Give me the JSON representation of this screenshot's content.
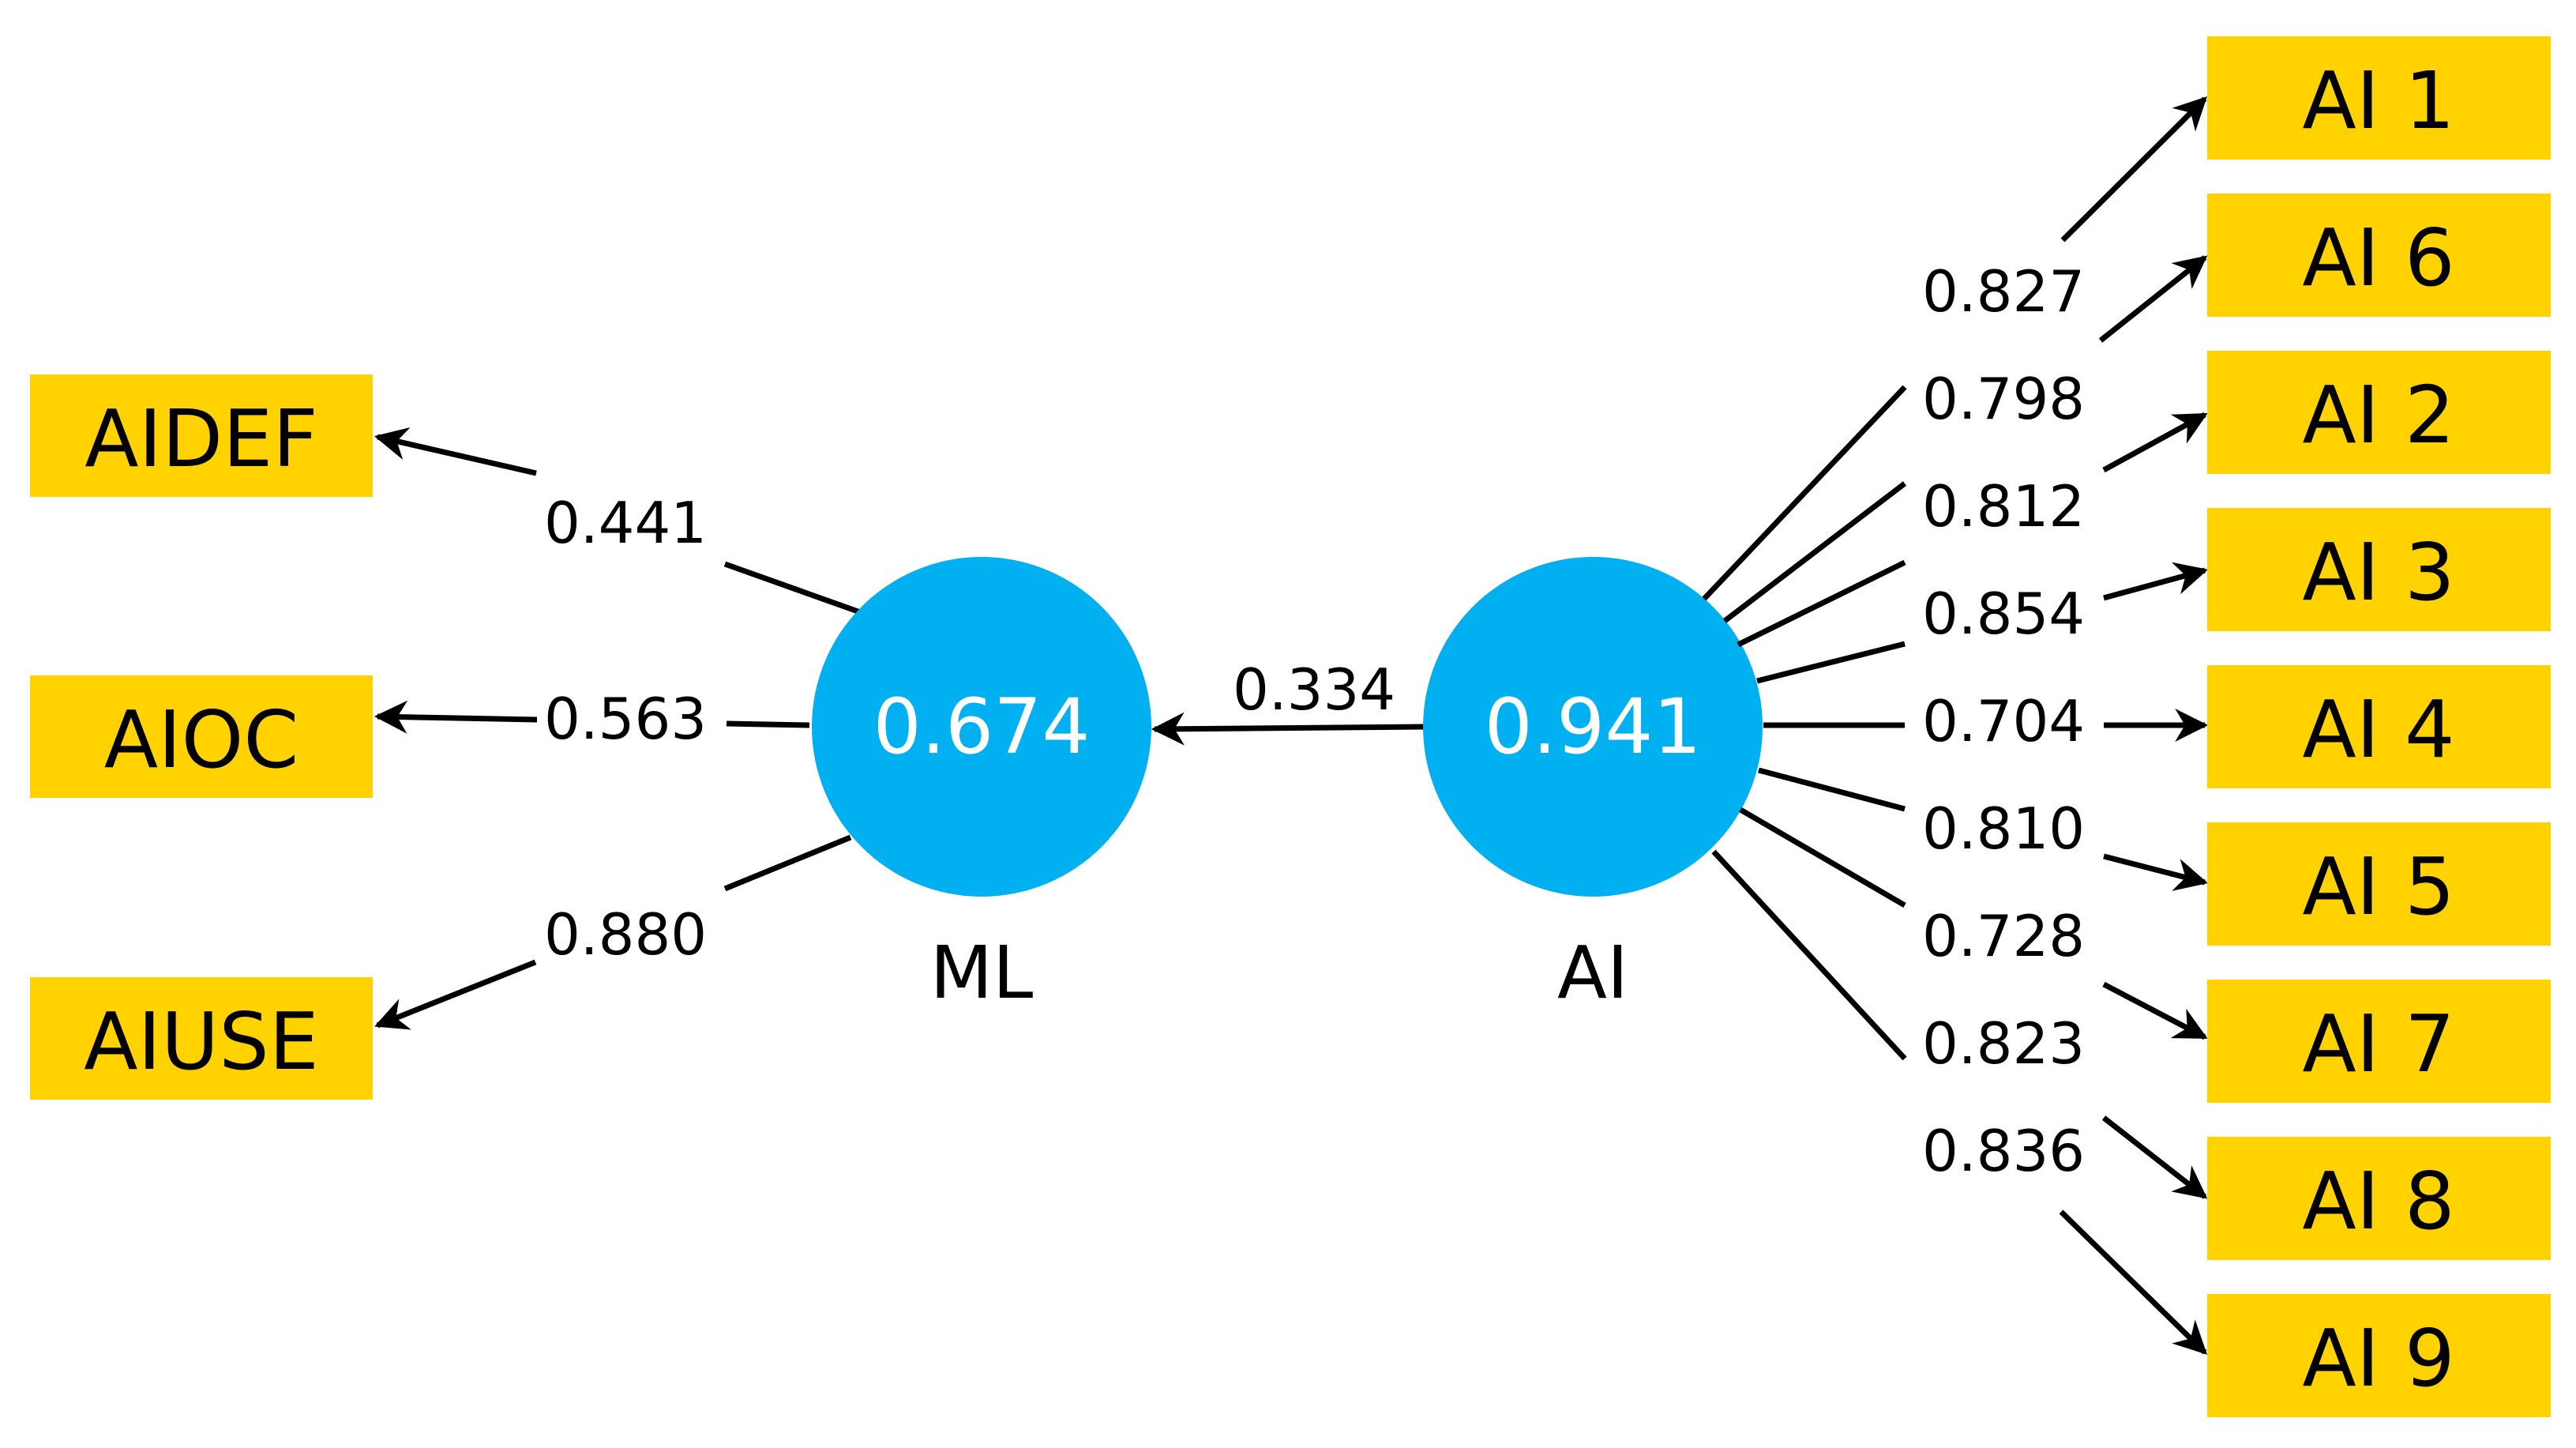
{
  "diagram": {
    "nodes": {
      "ml": {
        "value": "0.674",
        "name": "ML"
      },
      "ai": {
        "value": "0.941",
        "name": "AI"
      }
    },
    "structural_path": {
      "from": "AI",
      "to": "ML",
      "weight": "0.334"
    },
    "ml_indicators": [
      {
        "label": "AIDEF",
        "weight": "0.441"
      },
      {
        "label": "AIOC",
        "weight": "0.563"
      },
      {
        "label": "AIUSE",
        "weight": "0.880"
      }
    ],
    "ai_indicators": [
      {
        "label": "AI 1",
        "weight": "0.827"
      },
      {
        "label": "AI 6",
        "weight": "0.798"
      },
      {
        "label": "AI 2",
        "weight": "0.812"
      },
      {
        "label": "AI 3",
        "weight": "0.854"
      },
      {
        "label": "AI 4",
        "weight": "0.704"
      },
      {
        "label": "AI 5",
        "weight": "0.810"
      },
      {
        "label": "AI 7",
        "weight": "0.728"
      },
      {
        "label": "AI 8",
        "weight": "0.823"
      },
      {
        "label": "AI 9",
        "weight": "0.836"
      }
    ],
    "colors": {
      "indicator_box": "#ffd200",
      "latent_circle": "#00b0f0",
      "arrows": "#000000"
    }
  }
}
